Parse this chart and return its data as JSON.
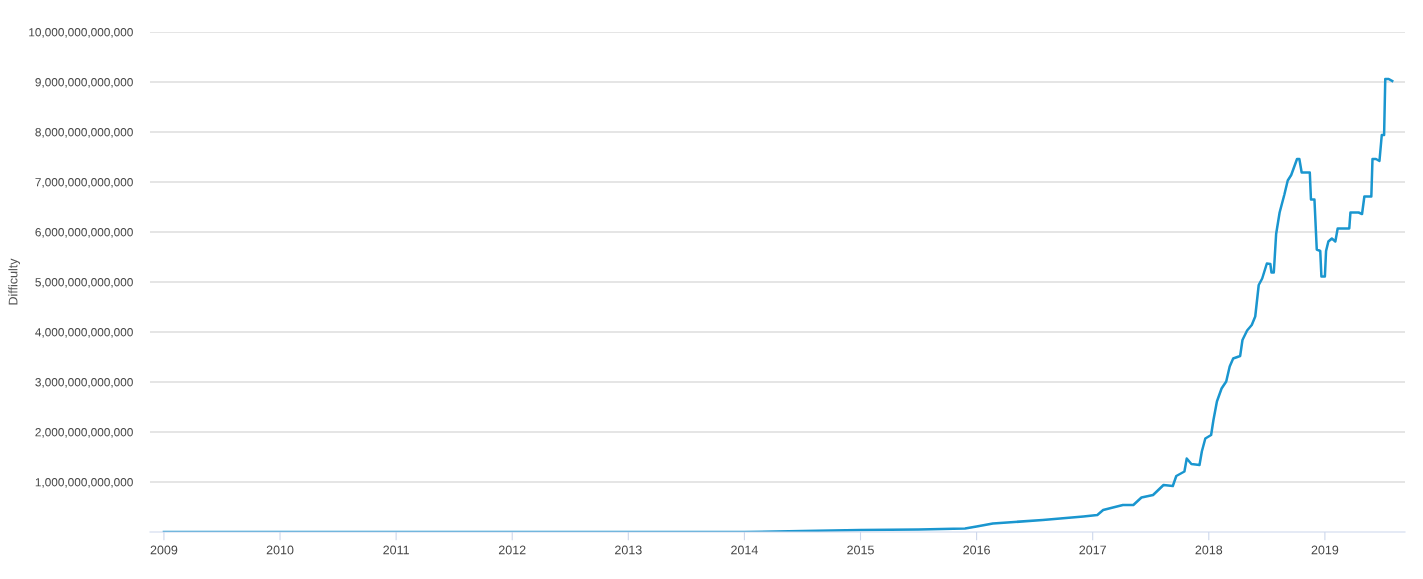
{
  "chart_data": {
    "type": "line",
    "ylabel": "Difficulty",
    "series": [
      {
        "color": "#1a96cf",
        "x": [
          2009.0,
          2010.0,
          2011.0,
          2012.0,
          2013.0,
          2014.0,
          2014.5,
          2015.0,
          2015.5,
          2015.9,
          2016.0,
          2016.14,
          2016.57,
          2016.92,
          2017.04,
          2017.09,
          2017.26,
          2017.35,
          2017.42,
          2017.52,
          2017.61,
          2017.69,
          2017.72,
          2017.79,
          2017.81,
          2017.85,
          2017.92,
          2017.94,
          2017.97,
          2018.02,
          2018.04,
          2018.07,
          2018.11,
          2018.15,
          2018.18,
          2018.21,
          2018.27,
          2018.29,
          2018.33,
          2018.37,
          2018.4,
          2018.43,
          2018.46,
          2018.5,
          2018.53,
          2018.54,
          2018.56,
          2018.58,
          2018.61,
          2018.65,
          2018.68,
          2018.71,
          2018.76,
          2018.78,
          2018.8,
          2018.87,
          2018.88,
          2018.91,
          2018.93,
          2018.96,
          2018.97,
          2019.0,
          2019.01,
          2019.03,
          2019.06,
          2019.09,
          2019.11,
          2019.21,
          2019.22,
          2019.29,
          2019.32,
          2019.34,
          2019.4,
          2019.41,
          2019.44,
          2019.47,
          2019.49,
          2019.51,
          2019.52,
          2019.55,
          2019.58
        ],
        "values": [
          0,
          0,
          0,
          0,
          0,
          0,
          20000000000,
          40000000000,
          50000000000,
          70000000000,
          110000000000,
          170000000000,
          240000000000,
          310000000000,
          340000000000,
          440000000000,
          540000000000,
          540000000000,
          690000000000,
          740000000000,
          940000000000,
          920000000000,
          1120000000000,
          1210000000000,
          1470000000000,
          1360000000000,
          1340000000000,
          1610000000000,
          1870000000000,
          1940000000000,
          2240000000000,
          2610000000000,
          2870000000000,
          3010000000000,
          3310000000000,
          3470000000000,
          3520000000000,
          3840000000000,
          4030000000000,
          4140000000000,
          4310000000000,
          4940000000000,
          5070000000000,
          5370000000000,
          5360000000000,
          5190000000000,
          5190000000000,
          5960000000000,
          6390000000000,
          6740000000000,
          7030000000000,
          7140000000000,
          7460000000000,
          7460000000000,
          7190000000000,
          7190000000000,
          6650000000000,
          6650000000000,
          5650000000000,
          5620000000000,
          5110000000000,
          5110000000000,
          5620000000000,
          5810000000000,
          5870000000000,
          5810000000000,
          6070000000000,
          6070000000000,
          6390000000000,
          6390000000000,
          6360000000000,
          6710000000000,
          6710000000000,
          7460000000000,
          7460000000000,
          7420000000000,
          7940000000000,
          7940000000000,
          9060000000000,
          9060000000000,
          9020000000000
        ]
      }
    ],
    "xlim": [
      2008.88,
      2019.69
    ],
    "xticks": [
      2009,
      2010,
      2011,
      2012,
      2013,
      2014,
      2015,
      2016,
      2017,
      2018,
      2019
    ],
    "ylim": [
      0,
      10000000000000
    ],
    "yticks": [
      {
        "value": 1000000000000,
        "label": "1,000,000,000,000"
      },
      {
        "value": 2000000000000,
        "label": "2,000,000,000,000"
      },
      {
        "value": 3000000000000,
        "label": "3,000,000,000,000"
      },
      {
        "value": 4000000000000,
        "label": "4,000,000,000,000"
      },
      {
        "value": 5000000000000,
        "label": "5,000,000,000,000"
      },
      {
        "value": 6000000000000,
        "label": "6,000,000,000,000"
      },
      {
        "value": 7000000000000,
        "label": "7,000,000,000,000"
      },
      {
        "value": 8000000000000,
        "label": "8,000,000,000,000"
      },
      {
        "value": 9000000000000,
        "label": "9,000,000,000,000"
      },
      {
        "value": 10000000000000,
        "label": "10,000,000,000,000"
      }
    ],
    "grid": "y",
    "legend": false
  }
}
